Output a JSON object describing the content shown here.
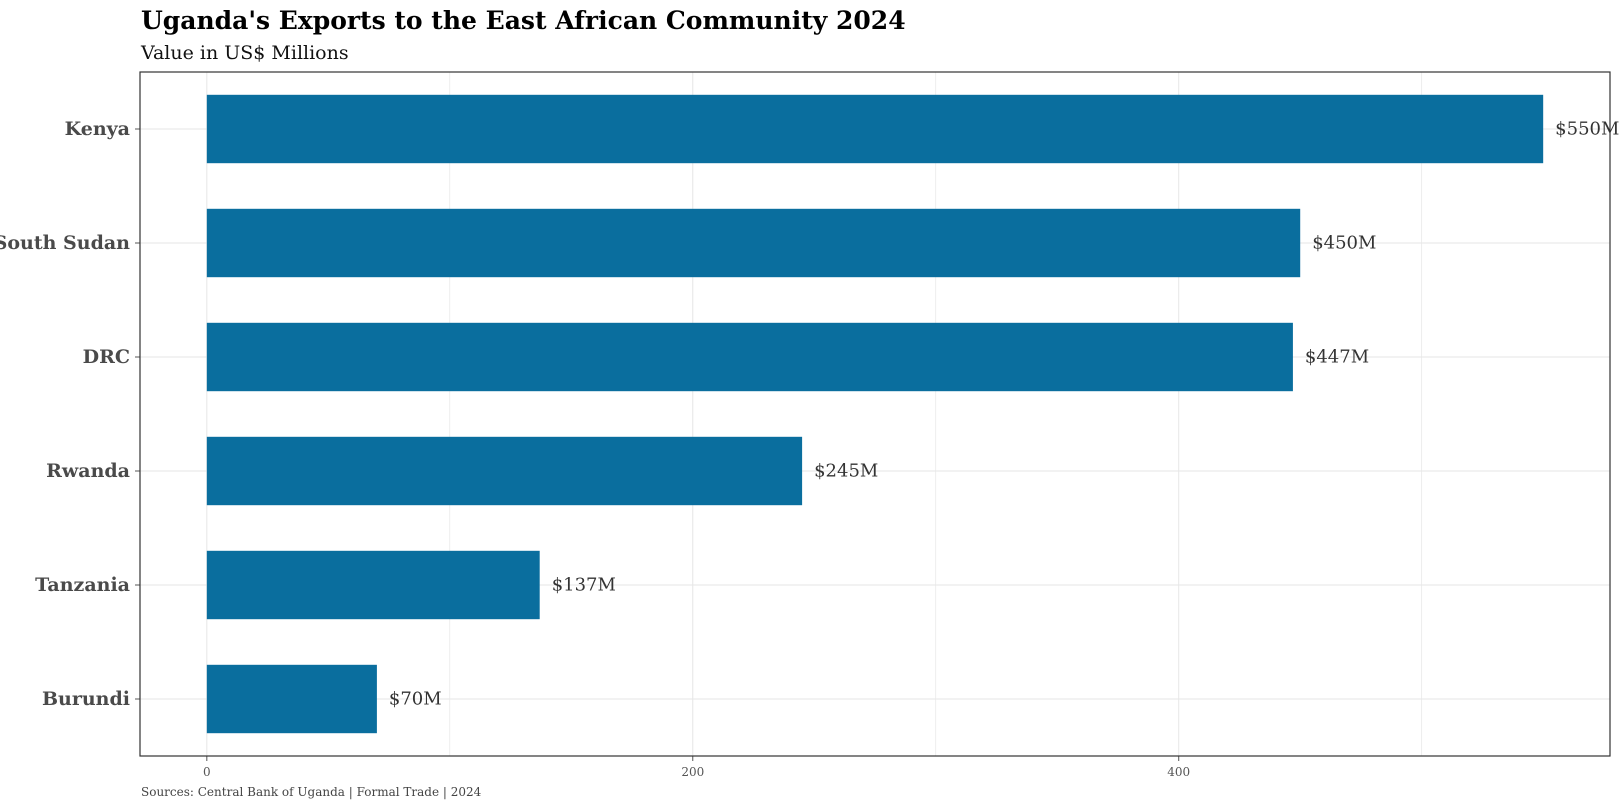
{
  "chart_data": {
    "type": "bar",
    "orientation": "horizontal",
    "title": "Uganda's Exports to the East African Community 2024",
    "subtitle": "Value in US$ Millions",
    "caption": "Sources: Central Bank of Uganda | Formal Trade | 2024",
    "categories": [
      "Kenya",
      "South Sudan",
      "DRC",
      "Rwanda",
      "Tanzania",
      "Burundi"
    ],
    "values": [
      550,
      450,
      447,
      245,
      137,
      70
    ],
    "value_labels": [
      "$550M",
      "$450M",
      "$447M",
      "$245M",
      "$137M",
      "$70M"
    ],
    "x_ticks": [
      0,
      200,
      400
    ],
    "x_tick_labels": [
      "0",
      "200",
      "400"
    ],
    "xlim": [
      -27.5,
      577.5
    ],
    "xlabel": "",
    "ylabel": "",
    "grid": true,
    "legend": "none",
    "bar_color": "#0a6e9e",
    "grid_color": "#e6e6e6",
    "panel_border_color": "#333333"
  }
}
